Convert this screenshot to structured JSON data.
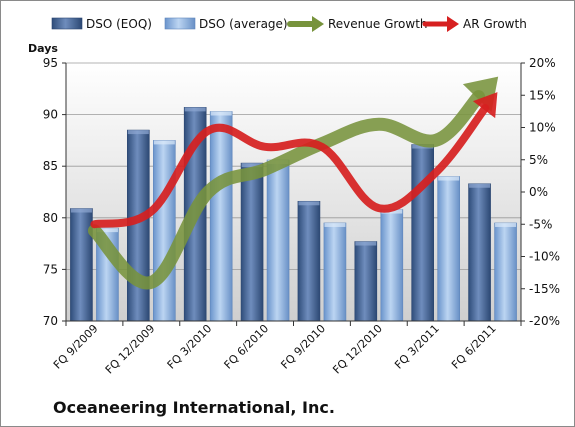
{
  "company": "Oceaneering International, Inc.",
  "colors": {
    "dso_eoq": "#4a6a9c",
    "dso_average": "#8fb4e3",
    "revenue_growth": "#77933c",
    "ar_growth": "#d62020"
  },
  "chart_data": {
    "type": "bar",
    "title": "",
    "xlabel": "",
    "ylabel": "Days",
    "y2label": "",
    "categories": [
      "FQ 9/2009",
      "FQ 12/2009",
      "FQ 3/2010",
      "FQ 6/2010",
      "FQ 9/2010",
      "FQ 12/2010",
      "FQ 3/2011",
      "FQ 6/2011"
    ],
    "ylim": [
      70,
      95
    ],
    "yticks": [
      70,
      75,
      80,
      85,
      90,
      95
    ],
    "y2lim": [
      -20,
      20
    ],
    "y2ticks": [
      -20,
      -15,
      -10,
      -5,
      0,
      5,
      10,
      15,
      20
    ],
    "y2tick_suffix": "%",
    "grid": "horizontal",
    "legend": "top",
    "series": [
      {
        "name": "DSO (EOQ)",
        "type": "bar",
        "axis": "left",
        "values": [
          80.9,
          88.5,
          90.7,
          85.3,
          81.6,
          77.7,
          87.1,
          83.3
        ]
      },
      {
        "name": "DSO (average)",
        "type": "bar",
        "axis": "left",
        "values": [
          79.0,
          87.5,
          90.3,
          85.6,
          79.5,
          80.8,
          84.0,
          79.5
        ]
      },
      {
        "name": "Revenue Growth",
        "type": "line",
        "axis": "right",
        "values": [
          -6.0,
          -14.0,
          0.0,
          3.5,
          7.5,
          10.5,
          8.0,
          17.0
        ]
      },
      {
        "name": "AR Growth",
        "type": "line",
        "axis": "right",
        "values": [
          -5.0,
          -3.0,
          9.5,
          7.0,
          7.0,
          -2.5,
          3.0,
          14.5
        ]
      }
    ]
  }
}
